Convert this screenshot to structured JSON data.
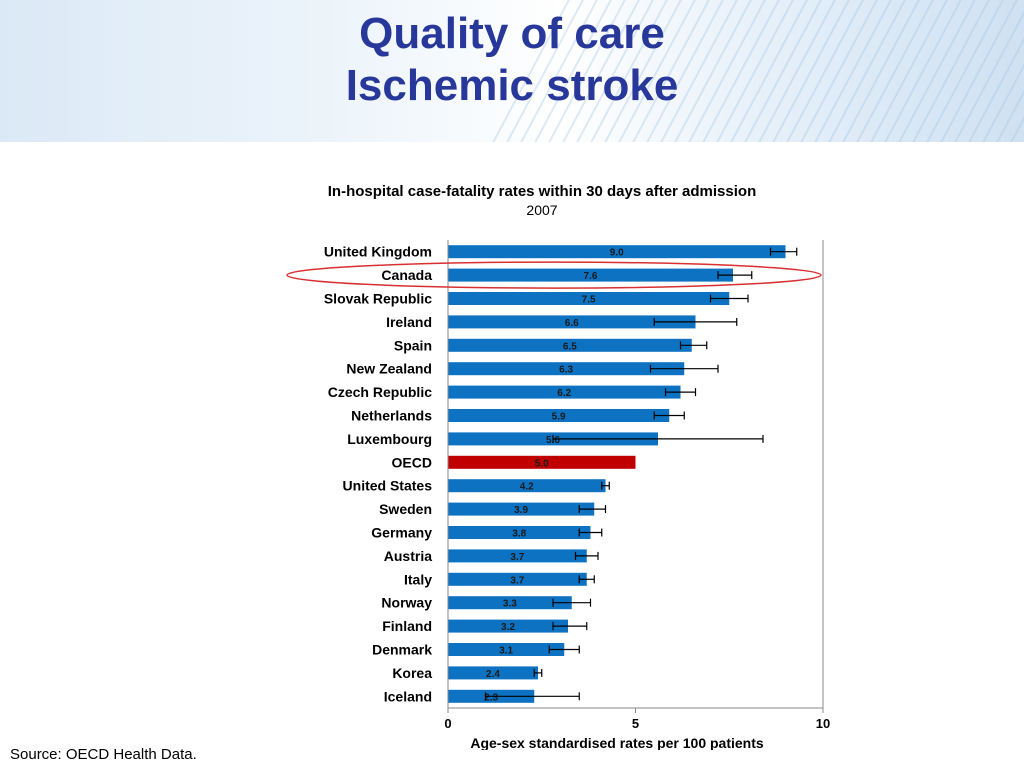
{
  "slide": {
    "title_line1": "Quality of care",
    "title_line2": "Ischemic stroke",
    "source": "Source: OECD Health Data."
  },
  "colors": {
    "title": "#28379a",
    "bar": "#0e72c2",
    "highlight_bar": "#c00000",
    "highlight_ellipse": "#d83030"
  },
  "chart_data": {
    "type": "bar",
    "orientation": "horizontal",
    "title": "In-hospital case-fatality rates within 30 days after admission",
    "subtitle": "2007",
    "xlabel": "Age-sex standardised rates per 100 patients",
    "ylabel": "",
    "xlim": [
      0,
      10
    ],
    "xticks": [
      0,
      5,
      10
    ],
    "grid": false,
    "legend": "none",
    "highlighted_category": "OECD",
    "circled_category": "Canada",
    "categories": [
      "United Kingdom",
      "Canada",
      "Slovak Republic",
      "Ireland",
      "Spain",
      "New Zealand",
      "Czech Republic",
      "Netherlands",
      "Luxembourg",
      "OECD",
      "United States",
      "Sweden",
      "Germany",
      "Austria",
      "Italy",
      "Norway",
      "Finland",
      "Denmark",
      "Korea",
      "Iceland"
    ],
    "values": [
      9.0,
      7.6,
      7.5,
      6.6,
      6.5,
      6.3,
      6.2,
      5.9,
      5.6,
      5.0,
      4.2,
      3.9,
      3.8,
      3.7,
      3.7,
      3.3,
      3.2,
      3.1,
      2.4,
      2.3
    ],
    "error_low": [
      8.6,
      7.2,
      7.0,
      5.5,
      6.2,
      5.4,
      5.8,
      5.5,
      2.8,
      null,
      4.1,
      3.5,
      3.5,
      3.4,
      3.5,
      2.8,
      2.8,
      2.7,
      2.3,
      1.0
    ],
    "error_high": [
      9.3,
      8.1,
      8.0,
      7.7,
      6.9,
      7.2,
      6.6,
      6.3,
      8.4,
      null,
      4.3,
      4.2,
      4.1,
      4.0,
      3.9,
      3.8,
      3.7,
      3.5,
      2.5,
      3.5
    ]
  }
}
